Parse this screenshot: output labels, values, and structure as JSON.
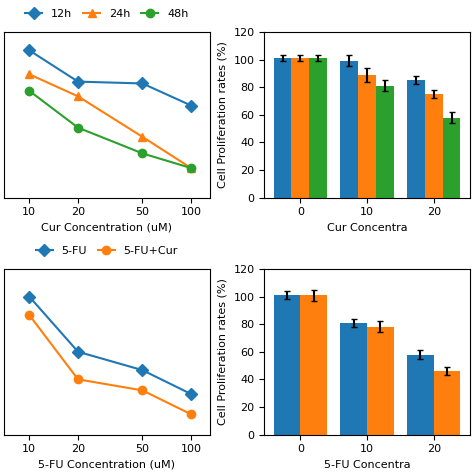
{
  "chart_data": [
    {
      "type": "line",
      "x": [
        10,
        20,
        50,
        100
      ],
      "xlabel": "Cur Concentration (uM)",
      "log": "x",
      "xlim": [
        7,
        130
      ],
      "xticks": [
        10,
        20,
        50,
        100
      ],
      "ylim": [
        30,
        120
      ],
      "tick_labels": "x",
      "legend": "lower center",
      "series": [
        {
          "name": "12h",
          "marker": "diamond",
          "values": [
            110,
            93,
            92,
            80
          ]
        },
        {
          "name": "24h",
          "marker": "triangle",
          "values": [
            97,
            85,
            63,
            46
          ]
        },
        {
          "name": "48h",
          "marker": "circle",
          "values": [
            88,
            68,
            54,
            46
          ]
        }
      ]
    },
    {
      "type": "bar",
      "categories": [
        "0",
        "10",
        "20"
      ],
      "xlabel": "Cur Concentra",
      "ylabel": "Cell Proliferation rates (%)",
      "ylim": [
        0,
        120
      ],
      "yticks": [
        0,
        20,
        40,
        60,
        80,
        100,
        120
      ],
      "series": [
        {
          "values": [
            101,
            99,
            85
          ],
          "errors": [
            2,
            4,
            3
          ]
        },
        {
          "values": [
            101,
            89,
            75
          ],
          "errors": [
            2,
            5,
            3
          ]
        },
        {
          "values": [
            101,
            81,
            58
          ],
          "errors": [
            2,
            4,
            4
          ]
        }
      ]
    },
    {
      "type": "line",
      "x": [
        10,
        20,
        50,
        100
      ],
      "xlabel": "5-FU Concentration (uM)",
      "log": "x",
      "xlim": [
        7,
        130
      ],
      "xticks": [
        10,
        20,
        50,
        100
      ],
      "ylim": [
        20,
        110
      ],
      "tick_labels": "x",
      "legend": "lower center",
      "series": [
        {
          "name": "5-FU",
          "marker": "diamond",
          "values": [
            95,
            65,
            55,
            42
          ]
        },
        {
          "name": "5-FU+Cur",
          "marker": "circle",
          "values": [
            85,
            50,
            44,
            31
          ]
        }
      ]
    },
    {
      "type": "bar",
      "categories": [
        "0",
        "10",
        "20"
      ],
      "xlabel": "5-FU Concentra",
      "ylabel": "Cell Proliferation rates (%)",
      "ylim": [
        0,
        120
      ],
      "yticks": [
        0,
        20,
        40,
        60,
        80,
        100,
        120
      ],
      "series": [
        {
          "values": [
            101,
            81,
            58
          ],
          "errors": [
            3,
            3,
            3
          ]
        },
        {
          "values": [
            101,
            78,
            46
          ],
          "errors": [
            4,
            4,
            3
          ]
        }
      ]
    }
  ]
}
